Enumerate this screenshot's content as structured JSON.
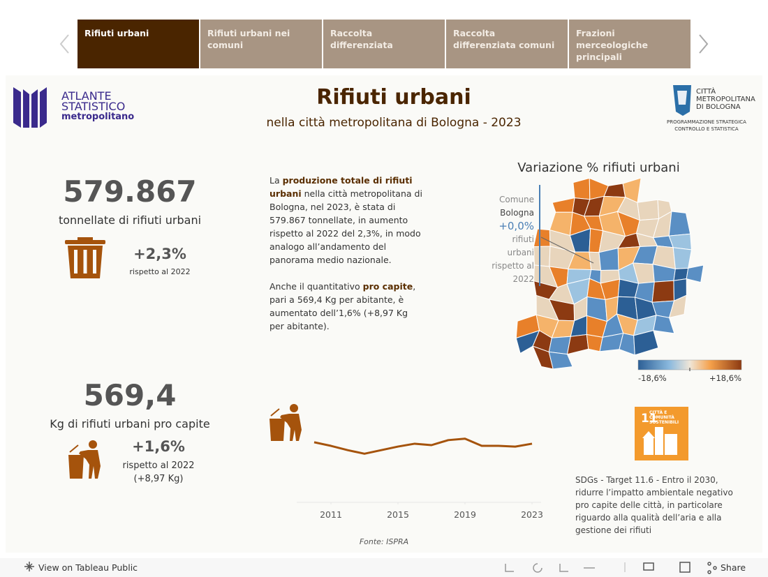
{
  "tabs": [
    {
      "label": "Rifiuti urbani",
      "active": true
    },
    {
      "label": "Rifiuti urbani nei comuni",
      "active": false
    },
    {
      "label": "Raccolta differenziata",
      "active": false
    },
    {
      "label": "Raccolta differenziata comuni",
      "active": false
    },
    {
      "label": "Frazioni merceologiche principali",
      "active": false
    }
  ],
  "header": {
    "logo_lines": [
      "ATLANTE",
      "STATISTICO",
      "metropolitano"
    ],
    "title": "Rifiuti urbani",
    "subtitle": "nella città metropolitana di Bologna - 2023",
    "org_lines": [
      "CITTÀ",
      "METROPOLITANA",
      "DI BOLOGNA"
    ],
    "org_sub_lines": [
      "PROGRAMMAZIONE STRATEGICA",
      "CONTROLLO E STATISTICA"
    ]
  },
  "kpi_total": {
    "value": "579.867",
    "label": "tonnellate di rifiuti urbani",
    "change": "+2,3%",
    "change_label": "rispetto al 2022"
  },
  "kpi_per_capita": {
    "value": "569,4",
    "label": "Kg di rifiuti urbani pro capite",
    "change": "+1,6%",
    "change_label": "rispetto al 2022",
    "change_detail": "(+8,97 Kg)"
  },
  "description": [
    [
      "La ",
      "produzione totale di rifiuti urbani",
      " nella città metropolitana di Bologna, nel 2023, è stata di 579.867 tonnellate, in aumento rispetto al 2022 del 2,3%, in modo analogo all’andamento del panorama medio nazionale."
    ],
    [
      "Anche il quantitativo ",
      "pro capite",
      ", pari a 569,4 Kg per abitante, è aumentato dell’1,6% (+8,97 Kg per abitante)."
    ]
  ],
  "map": {
    "title": "Variazione % rifiuti urbani",
    "tooltip": [
      "Comune",
      "Bologna",
      "+0,0%",
      "rifiuti",
      "urbani",
      "rispetto al",
      "2022"
    ],
    "legend_min": "-18,6%",
    "legend_max": "+18,6%"
  },
  "chart_data": {
    "type": "line",
    "x": [
      2010,
      2011,
      2012,
      2013,
      2014,
      2015,
      2016,
      2017,
      2018,
      2019,
      2020,
      2021,
      2022,
      2023
    ],
    "values": [
      573.8,
      562.8,
      549.6,
      538.6,
      549.6,
      560.6,
      569.4,
      565,
      580.4,
      584.8,
      562.8,
      562.8,
      560.4,
      569.4
    ],
    "color": "#a5530c",
    "xlim": [
      2010,
      2023
    ],
    "xticks": [
      2011,
      2015,
      2019,
      2023
    ],
    "ylim": [
      400,
      700
    ]
  },
  "sdg": {
    "badge_number": "11",
    "badge_text": "CITTÀ E COMUNITÀ SOSTENIBILI",
    "text": "SDGs - Target 11.6 - Entro il 2030, ridurre l’impatto ambientale negativo pro capite delle città, in particolare riguardo alla qualità dell’aria e alla gestione dei rifiuti"
  },
  "source": "Fonte: ISPRA",
  "toolbar": {
    "view": "View on Tableau Public",
    "share": "Share"
  }
}
